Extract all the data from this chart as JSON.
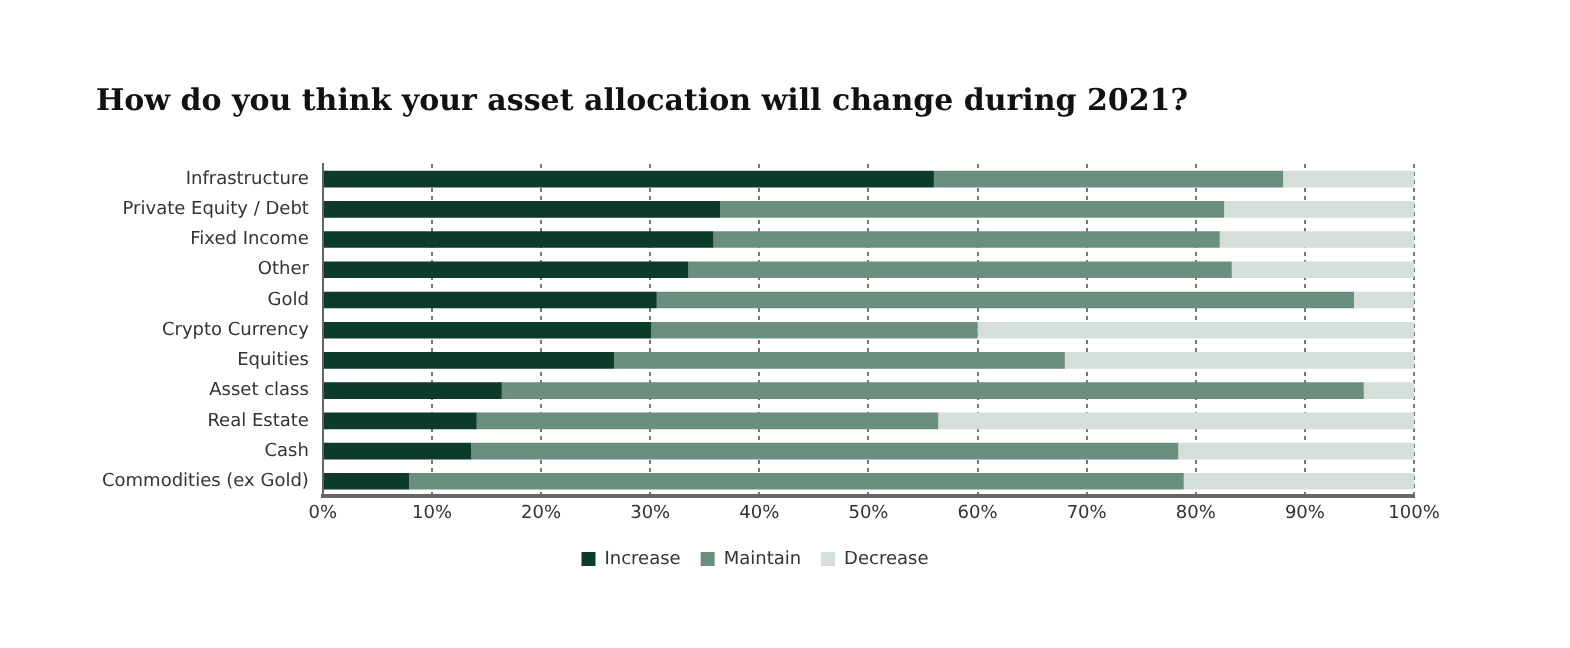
{
  "chart_data": {
    "type": "bar",
    "orientation": "horizontal",
    "stacked": true,
    "title": "How do you think your asset allocation will change during 2021?",
    "categories": [
      "Infrastructure",
      "Private Equity / Debt",
      "Fixed Income",
      "Other",
      "Gold",
      "Crypto Currency",
      "Equities",
      "Asset class",
      "Real Estate",
      "Cash",
      "Commodities (ex Gold)"
    ],
    "series": [
      {
        "name": "Increase",
        "color": "#0d3b2a",
        "values": [
          56,
          36.4,
          35.8,
          33.5,
          30.6,
          30.1,
          26.7,
          16.4,
          14.1,
          13.6,
          7.9
        ]
      },
      {
        "name": "Maintain",
        "color": "#6b8f7e",
        "values": [
          32,
          46.2,
          46.4,
          49.8,
          63.9,
          29.9,
          41.3,
          79,
          42.3,
          64.8,
          71
        ]
      },
      {
        "name": "Decrease",
        "color": "#d4dfd9",
        "values": [
          12,
          17.4,
          17.8,
          16.7,
          5.5,
          40,
          32,
          4.6,
          43.6,
          21.6,
          21.1
        ]
      }
    ],
    "xlim": [
      0,
      100
    ],
    "xticks": [
      {
        "value": 0,
        "label": "0%"
      },
      {
        "value": 10,
        "label": "10%"
      },
      {
        "value": 20,
        "label": "20%"
      },
      {
        "value": 30,
        "label": "30%"
      },
      {
        "value": 40,
        "label": "40%"
      },
      {
        "value": 50,
        "label": "50%"
      },
      {
        "value": 60,
        "label": "60%"
      },
      {
        "value": 70,
        "label": "70%"
      },
      {
        "value": 80,
        "label": "80%"
      },
      {
        "value": 90,
        "label": "90%"
      },
      {
        "value": 100,
        "label": "100%"
      }
    ],
    "grid": "x",
    "legend": "bottom"
  }
}
